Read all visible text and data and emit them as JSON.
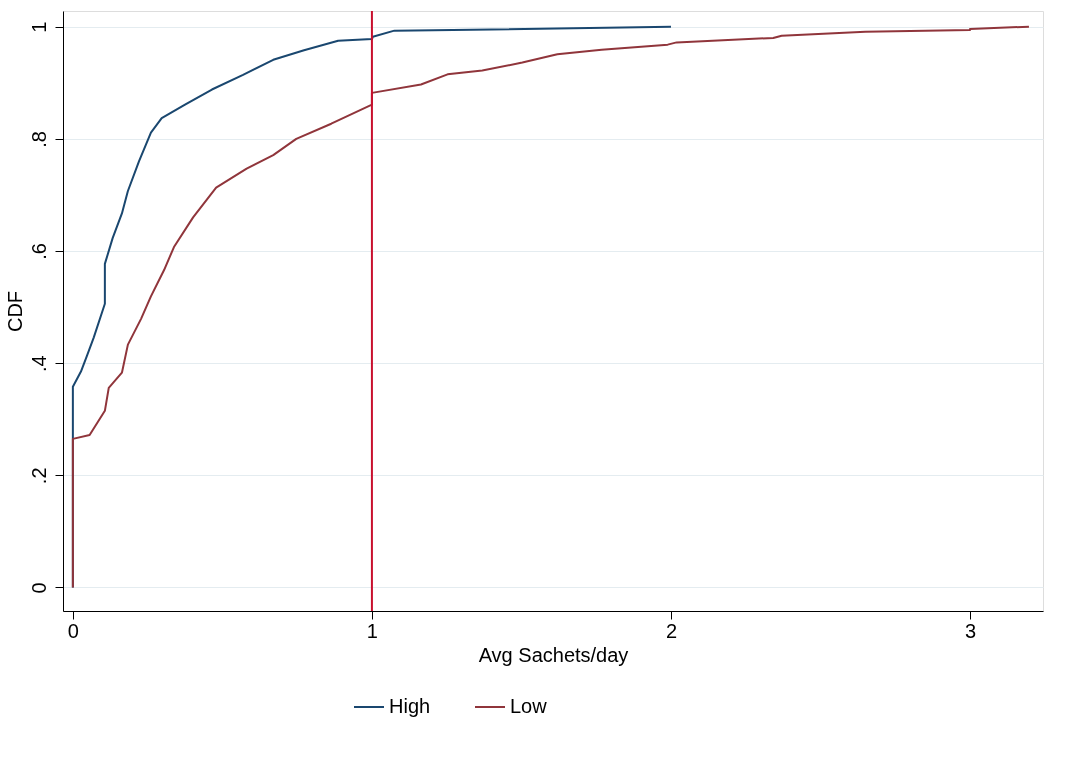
{
  "chart_data": {
    "type": "line",
    "xlabel": "Avg Sachets/day",
    "ylabel": "CDF",
    "series": [
      {
        "name": "High",
        "color": "#1a476f",
        "x": [
          0,
          0,
          0.027,
          0.047,
          0.07,
          0.107,
          0.107,
          0.133,
          0.164,
          0.184,
          0.221,
          0.261,
          0.297,
          0.375,
          0.465,
          0.569,
          0.67,
          0.773,
          0.887,
          1.0,
          1.003,
          1.075,
          1.4,
          2.0
        ],
        "values": [
          0,
          0.358,
          0.385,
          0.413,
          0.446,
          0.506,
          0.577,
          0.623,
          0.667,
          0.707,
          0.76,
          0.811,
          0.837,
          0.861,
          0.888,
          0.914,
          0.941,
          0.958,
          0.975,
          0.978,
          0.982,
          0.993,
          0.995,
          1.0
        ]
      },
      {
        "name": "Low",
        "color": "#90353b",
        "x": [
          0,
          0,
          0.056,
          0.107,
          0.12,
          0.164,
          0.184,
          0.228,
          0.261,
          0.305,
          0.338,
          0.402,
          0.479,
          0.581,
          0.67,
          0.747,
          0.864,
          1.0,
          1.0,
          1.164,
          1.253,
          1.369,
          1.503,
          1.62,
          1.768,
          1.989,
          2.019,
          2.342,
          2.37,
          2.65,
          3.0,
          3.0,
          3.197
        ],
        "values": [
          0,
          0.265,
          0.272,
          0.315,
          0.356,
          0.383,
          0.433,
          0.479,
          0.519,
          0.566,
          0.607,
          0.66,
          0.713,
          0.747,
          0.771,
          0.8,
          0.827,
          0.861,
          0.882,
          0.897,
          0.915,
          0.922,
          0.936,
          0.951,
          0.959,
          0.968,
          0.972,
          0.98,
          0.984,
          0.991,
          0.994,
          0.996,
          1.0
        ]
      }
    ],
    "xlim": [
      -0.033,
      3.244
    ],
    "xticks": [
      0,
      1,
      2,
      3
    ],
    "ylim": [
      -0.042,
      1.028
    ],
    "yticks": [
      0,
      {
        "value": 0.2,
        "label": ".2"
      },
      {
        "value": 0.4,
        "label": ".4"
      },
      {
        "value": 0.6,
        "label": ".6"
      },
      {
        "value": 0.8,
        "label": ".8"
      },
      1
    ],
    "ref_lines": [
      {
        "axis": "x",
        "value": 1,
        "color": "#c8102e"
      }
    ],
    "grid": "y",
    "legend": "bottom"
  }
}
